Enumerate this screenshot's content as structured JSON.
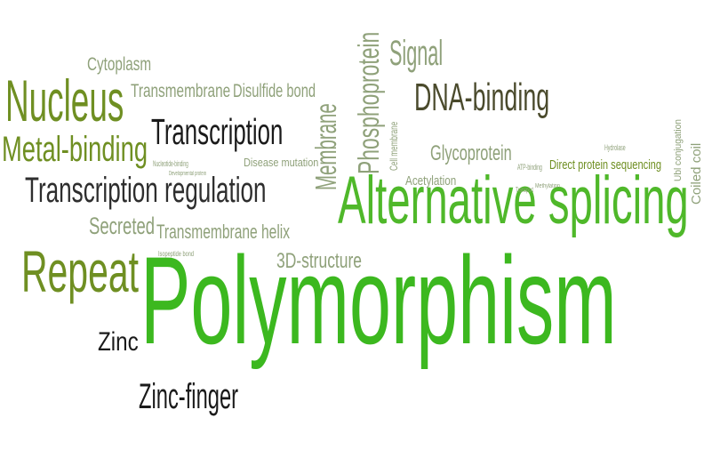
{
  "title": "",
  "colors": {
    "bright_green": "#3cb81f",
    "olive_green": "#6f8f22",
    "sage": "#8fa17a",
    "dark_olive": "#4a4a2c",
    "near_black": "#1a1a1a"
  },
  "words": [
    {
      "text": "Polymorphism",
      "color": "#3cb81f",
      "orientation": "horizontal",
      "size_rank": 1
    },
    {
      "text": "Alternative splicing",
      "color": "#4fb82a",
      "orientation": "horizontal",
      "size_rank": 2
    },
    {
      "text": "Repeat",
      "color": "#6f8f22",
      "orientation": "horizontal",
      "size_rank": 3
    },
    {
      "text": "Nucleus",
      "color": "#6f8f22",
      "orientation": "horizontal",
      "size_rank": 3
    },
    {
      "text": "DNA-binding",
      "color": "#4a4a2c",
      "orientation": "horizontal",
      "size_rank": 4
    },
    {
      "text": "Transcription",
      "color": "#1a1a1a",
      "orientation": "horizontal",
      "size_rank": 4
    },
    {
      "text": "Metal-binding",
      "color": "#6f8f22",
      "orientation": "horizontal",
      "size_rank": 4
    },
    {
      "text": "Transcription regulation",
      "color": "#2e2e2e",
      "orientation": "horizontal",
      "size_rank": 4
    },
    {
      "text": "Zinc-finger",
      "color": "#1a1a1a",
      "orientation": "horizontal",
      "size_rank": 5
    },
    {
      "text": "Zinc",
      "color": "#1a1a1a",
      "orientation": "horizontal",
      "size_rank": 5
    },
    {
      "text": "Signal",
      "color": "#8fa17a",
      "orientation": "horizontal",
      "size_rank": 5
    },
    {
      "text": "Phosphoprotein",
      "color": "#8fa17a",
      "orientation": "vertical",
      "size_rank": 5
    },
    {
      "text": "Membrane",
      "color": "#8fa17a",
      "orientation": "vertical",
      "size_rank": 5
    },
    {
      "text": "Glycoprotein",
      "color": "#8fa17a",
      "orientation": "horizontal",
      "size_rank": 6
    },
    {
      "text": "Cytoplasm",
      "color": "#8fa17a",
      "orientation": "horizontal",
      "size_rank": 6
    },
    {
      "text": "Transmembrane",
      "color": "#8fa17a",
      "orientation": "horizontal",
      "size_rank": 6
    },
    {
      "text": "Disulfide bond",
      "color": "#8fa17a",
      "orientation": "horizontal",
      "size_rank": 6
    },
    {
      "text": "Secreted",
      "color": "#8fa17a",
      "orientation": "horizontal",
      "size_rank": 6
    },
    {
      "text": "Transmembrane helix",
      "color": "#8fa17a",
      "orientation": "horizontal",
      "size_rank": 6
    },
    {
      "text": "3D-structure",
      "color": "#8fa17a",
      "orientation": "horizontal",
      "size_rank": 6
    },
    {
      "text": "Direct protein sequencing",
      "color": "#6f8f22",
      "orientation": "horizontal",
      "size_rank": 7
    },
    {
      "text": "Coiled coil",
      "color": "#8fa17a",
      "orientation": "vertical",
      "size_rank": 7
    },
    {
      "text": "Acetylation",
      "color": "#8fa17a",
      "orientation": "horizontal",
      "size_rank": 8
    },
    {
      "text": "Cell membrane",
      "color": "#8fa17a",
      "orientation": "vertical",
      "size_rank": 8
    },
    {
      "text": "Disease mutation",
      "color": "#8fa17a",
      "orientation": "horizontal",
      "size_rank": 8
    },
    {
      "text": "Ubl conjugation",
      "color": "#8fa17a",
      "orientation": "vertical",
      "size_rank": 8
    },
    {
      "text": "Nucleotide-binding",
      "color": "#8fa17a",
      "orientation": "horizontal",
      "size_rank": 9
    },
    {
      "text": "ATP-binding",
      "color": "#8fa17a",
      "orientation": "horizontal",
      "size_rank": 9
    },
    {
      "text": "Hydrolase",
      "color": "#8fa17a",
      "orientation": "horizontal",
      "size_rank": 9
    },
    {
      "text": "Isopeptide bond",
      "color": "#8fa17a",
      "orientation": "horizontal",
      "size_rank": 9
    },
    {
      "text": "Transport",
      "color": "#8fa17a",
      "orientation": "horizontal",
      "size_rank": 9
    },
    {
      "text": "Methylation",
      "color": "#8fa17a",
      "orientation": "horizontal",
      "size_rank": 9
    },
    {
      "text": "Developmental protein",
      "color": "#8fa17a",
      "orientation": "horizontal",
      "size_rank": 9
    }
  ]
}
